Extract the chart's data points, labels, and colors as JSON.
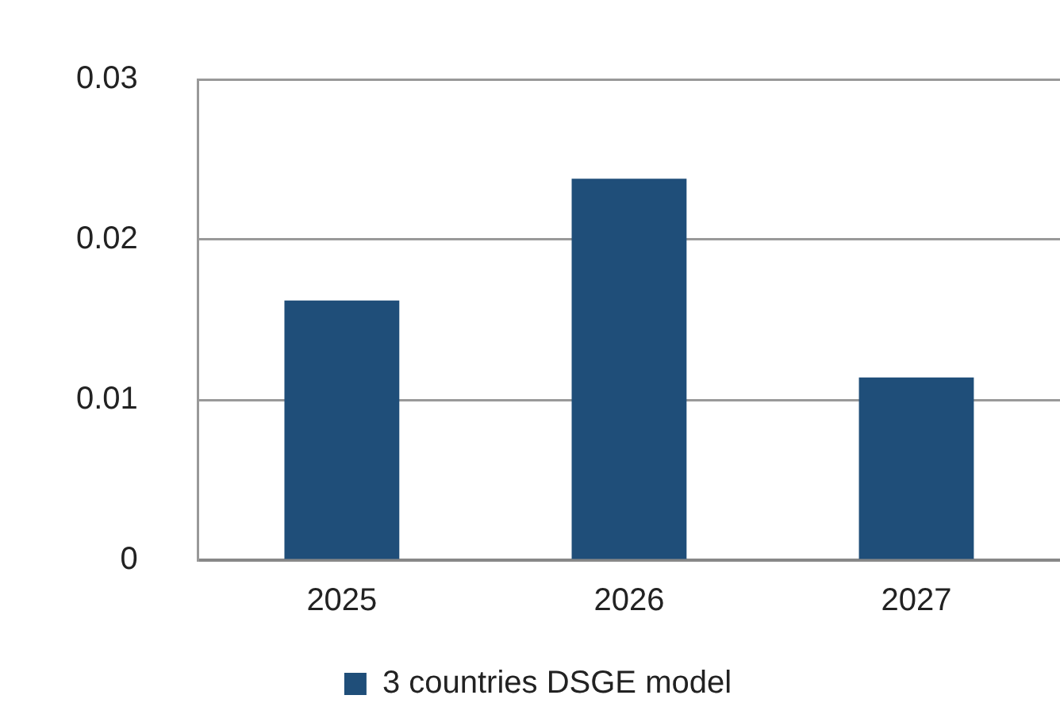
{
  "chart_data": {
    "type": "bar",
    "categories": [
      "2025",
      "2026",
      "2027"
    ],
    "series": [
      {
        "name": "3 countries DSGE model",
        "color": "#1f4e79",
        "values": [
          0.0162,
          0.0238,
          0.0114
        ]
      }
    ],
    "ylim": [
      0,
      0.03
    ],
    "yticks": [
      0,
      0.01,
      0.02,
      0.03
    ],
    "grid": "y",
    "legend": "bottom"
  }
}
